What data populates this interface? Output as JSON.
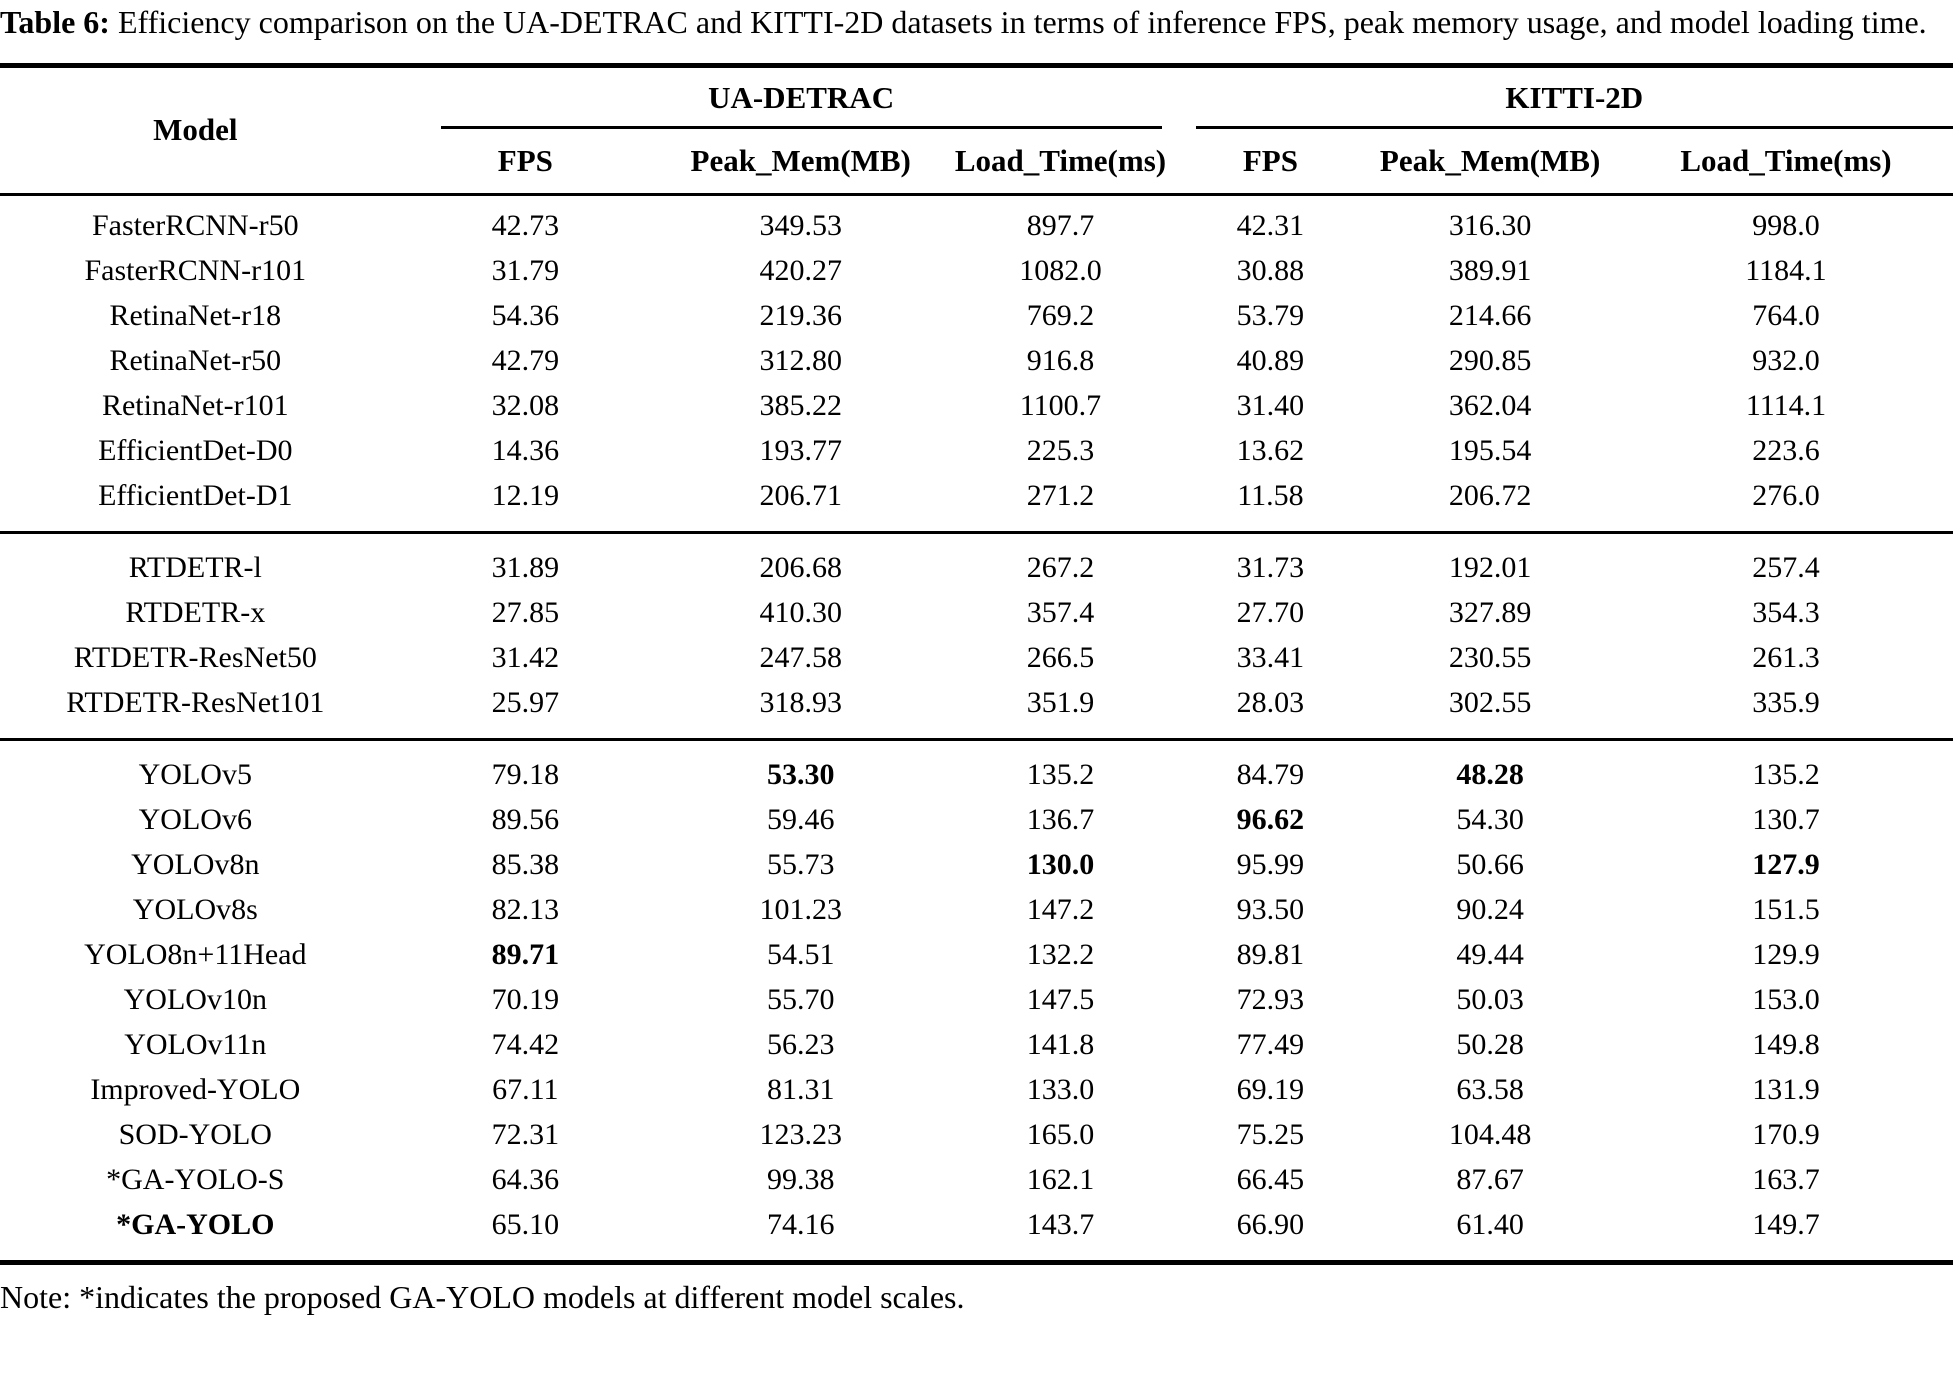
{
  "caption": {
    "label": "Table 6:",
    "text": "Efficiency comparison on the UA-DETRAC and KITTI-2D datasets in terms of inference FPS, peak memory usage, and model loading time."
  },
  "table": {
    "model_header": "Model",
    "group_headers": [
      "UA-DETRAC",
      "KITTI-2D"
    ],
    "sub_headers": [
      "FPS",
      "Peak_Mem(MB)",
      "Load_Time(ms)",
      "FPS",
      "Peak_Mem(MB)",
      "Load_Time(ms)"
    ],
    "blocks": [
      {
        "rows": [
          {
            "model": "FasterRCNN-r50",
            "values": [
              "42.73",
              "349.53",
              "897.7",
              "42.31",
              "316.30",
              "998.0"
            ],
            "bold": [],
            "model_bold": false
          },
          {
            "model": "FasterRCNN-r101",
            "values": [
              "31.79",
              "420.27",
              "1082.0",
              "30.88",
              "389.91",
              "1184.1"
            ],
            "bold": [],
            "model_bold": false
          },
          {
            "model": "RetinaNet-r18",
            "values": [
              "54.36",
              "219.36",
              "769.2",
              "53.79",
              "214.66",
              "764.0"
            ],
            "bold": [],
            "model_bold": false
          },
          {
            "model": "RetinaNet-r50",
            "values": [
              "42.79",
              "312.80",
              "916.8",
              "40.89",
              "290.85",
              "932.0"
            ],
            "bold": [],
            "model_bold": false
          },
          {
            "model": "RetinaNet-r101",
            "values": [
              "32.08",
              "385.22",
              "1100.7",
              "31.40",
              "362.04",
              "1114.1"
            ],
            "bold": [],
            "model_bold": false
          },
          {
            "model": "EfficientDet-D0",
            "values": [
              "14.36",
              "193.77",
              "225.3",
              "13.62",
              "195.54",
              "223.6"
            ],
            "bold": [],
            "model_bold": false
          },
          {
            "model": "EfficientDet-D1",
            "values": [
              "12.19",
              "206.71",
              "271.2",
              "11.58",
              "206.72",
              "276.0"
            ],
            "bold": [],
            "model_bold": false
          }
        ]
      },
      {
        "rows": [
          {
            "model": "RTDETR-l",
            "values": [
              "31.89",
              "206.68",
              "267.2",
              "31.73",
              "192.01",
              "257.4"
            ],
            "bold": [],
            "model_bold": false
          },
          {
            "model": "RTDETR-x",
            "values": [
              "27.85",
              "410.30",
              "357.4",
              "27.70",
              "327.89",
              "354.3"
            ],
            "bold": [],
            "model_bold": false
          },
          {
            "model": "RTDETR-ResNet50",
            "values": [
              "31.42",
              "247.58",
              "266.5",
              "33.41",
              "230.55",
              "261.3"
            ],
            "bold": [],
            "model_bold": false
          },
          {
            "model": "RTDETR-ResNet101",
            "values": [
              "25.97",
              "318.93",
              "351.9",
              "28.03",
              "302.55",
              "335.9"
            ],
            "bold": [],
            "model_bold": false
          }
        ]
      },
      {
        "rows": [
          {
            "model": "YOLOv5",
            "values": [
              "79.18",
              "53.30",
              "135.2",
              "84.79",
              "48.28",
              "135.2"
            ],
            "bold": [
              1,
              4
            ],
            "model_bold": false
          },
          {
            "model": "YOLOv6",
            "values": [
              "89.56",
              "59.46",
              "136.7",
              "96.62",
              "54.30",
              "130.7"
            ],
            "bold": [
              3
            ],
            "model_bold": false
          },
          {
            "model": "YOLOv8n",
            "values": [
              "85.38",
              "55.73",
              "130.0",
              "95.99",
              "50.66",
              "127.9"
            ],
            "bold": [
              2,
              5
            ],
            "model_bold": false
          },
          {
            "model": "YOLOv8s",
            "values": [
              "82.13",
              "101.23",
              "147.2",
              "93.50",
              "90.24",
              "151.5"
            ],
            "bold": [],
            "model_bold": false
          },
          {
            "model": "YOLO8n+11Head",
            "values": [
              "89.71",
              "54.51",
              "132.2",
              "89.81",
              "49.44",
              "129.9"
            ],
            "bold": [
              0
            ],
            "model_bold": false
          },
          {
            "model": "YOLOv10n",
            "values": [
              "70.19",
              "55.70",
              "147.5",
              "72.93",
              "50.03",
              "153.0"
            ],
            "bold": [],
            "model_bold": false
          },
          {
            "model": "YOLOv11n",
            "values": [
              "74.42",
              "56.23",
              "141.8",
              "77.49",
              "50.28",
              "149.8"
            ],
            "bold": [],
            "model_bold": false
          },
          {
            "model": "Improved-YOLO",
            "values": [
              "67.11",
              "81.31",
              "133.0",
              "69.19",
              "63.58",
              "131.9"
            ],
            "bold": [],
            "model_bold": false
          },
          {
            "model": "SOD-YOLO",
            "values": [
              "72.31",
              "123.23",
              "165.0",
              "75.25",
              "104.48",
              "170.9"
            ],
            "bold": [],
            "model_bold": false
          },
          {
            "model": "*GA-YOLO-S",
            "values": [
              "64.36",
              "99.38",
              "162.1",
              "66.45",
              "87.67",
              "163.7"
            ],
            "bold": [],
            "model_bold": false
          },
          {
            "model": "*GA-YOLO",
            "values": [
              "65.10",
              "74.16",
              "143.7",
              "66.90",
              "61.40",
              "149.7"
            ],
            "bold": [],
            "model_bold": true
          }
        ]
      }
    ]
  },
  "note": "Note: *indicates the proposed GA-YOLO models at different model scales."
}
